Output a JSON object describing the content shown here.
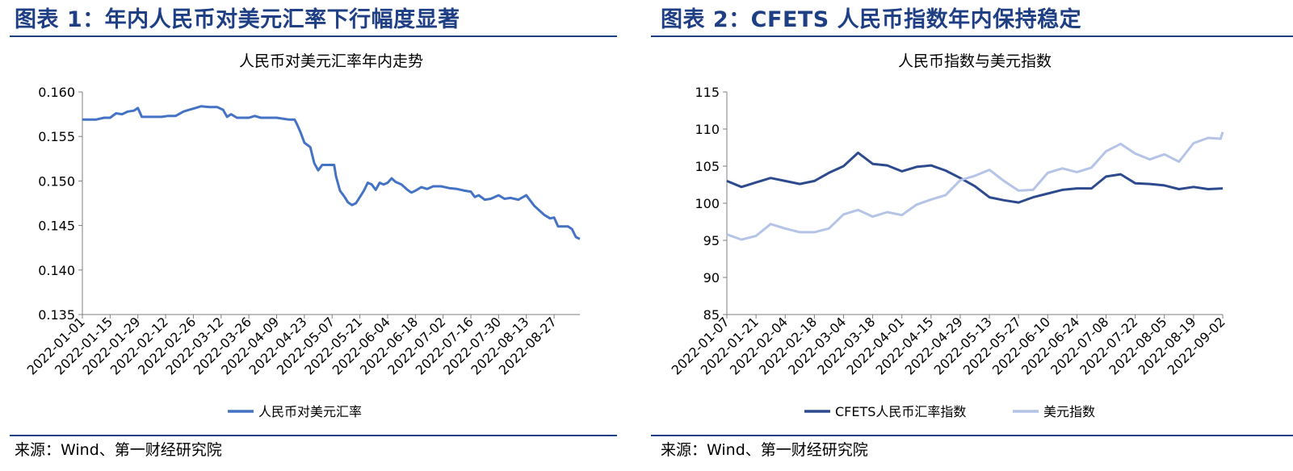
{
  "left": {
    "figure_title": "图表 1：年内人民币对美元汇率下行幅度显著",
    "source": "来源：Wind、第一财经研究院"
  },
  "right": {
    "figure_title": "图表 2：CFETS 人民币指数年内保持稳定",
    "source": "来源：Wind、第一财经研究院"
  },
  "colors": {
    "heading": "#1f3f85",
    "usdcny": "#4472c4",
    "cfets": "#2e4a8e",
    "dxy": "#b4c3e6"
  },
  "chart_data": [
    {
      "type": "line",
      "title": "人民币对美元汇率年内走势",
      "xlabel": "",
      "ylabel": "",
      "ylim": [
        0.135,
        0.16
      ],
      "yticks": [
        "0.135",
        "0.140",
        "0.145",
        "0.150",
        "0.155",
        "0.160"
      ],
      "xtick_labels": [
        "2022-01-01",
        "2022-01-15",
        "2022-01-29",
        "2022-02-12",
        "2022-02-26",
        "2022-03-12",
        "2022-03-26",
        "2022-04-09",
        "2022-04-23",
        "2022-05-07",
        "2022-05-21",
        "2022-06-04",
        "2022-06-18",
        "2022-07-02",
        "2022-07-16",
        "2022-07-30",
        "2022-08-13",
        "2022-08-27"
      ],
      "x_range": [
        "2022-01-01",
        "2022-09-09"
      ],
      "grid": false,
      "legend": "bottom",
      "series": [
        {
          "name": "人民币对美元汇率",
          "color": "#4472c4",
          "points": [
            [
              "2022-01-01",
              0.1569
            ],
            [
              "2022-01-05",
              0.1569
            ],
            [
              "2022-01-08",
              0.1569
            ],
            [
              "2022-01-12",
              0.1571
            ],
            [
              "2022-01-15",
              0.1571
            ],
            [
              "2022-01-18",
              0.1576
            ],
            [
              "2022-01-21",
              0.1575
            ],
            [
              "2022-01-24",
              0.1578
            ],
            [
              "2022-01-27",
              0.1579
            ],
            [
              "2022-01-29",
              0.1582
            ],
            [
              "2022-01-31",
              0.1572
            ],
            [
              "2022-02-03",
              0.1572
            ],
            [
              "2022-02-07",
              0.1572
            ],
            [
              "2022-02-10",
              0.1572
            ],
            [
              "2022-02-13",
              0.1573
            ],
            [
              "2022-02-17",
              0.1573
            ],
            [
              "2022-02-21",
              0.1578
            ],
            [
              "2022-02-24",
              0.158
            ],
            [
              "2022-02-27",
              0.1582
            ],
            [
              "2022-03-02",
              0.1584
            ],
            [
              "2022-03-06",
              0.1583
            ],
            [
              "2022-03-10",
              0.1583
            ],
            [
              "2022-03-13",
              0.158
            ],
            [
              "2022-03-15",
              0.1572
            ],
            [
              "2022-03-17",
              0.1575
            ],
            [
              "2022-03-20",
              0.1571
            ],
            [
              "2022-03-23",
              0.1571
            ],
            [
              "2022-03-26",
              0.1571
            ],
            [
              "2022-03-29",
              0.1573
            ],
            [
              "2022-04-01",
              0.1571
            ],
            [
              "2022-04-05",
              0.1571
            ],
            [
              "2022-04-09",
              0.1571
            ],
            [
              "2022-04-12",
              0.157
            ],
            [
              "2022-04-15",
              0.1569
            ],
            [
              "2022-04-18",
              0.1569
            ],
            [
              "2022-04-19",
              0.1565
            ],
            [
              "2022-04-21",
              0.1555
            ],
            [
              "2022-04-23",
              0.1543
            ],
            [
              "2022-04-26",
              0.1538
            ],
            [
              "2022-04-28",
              0.152
            ],
            [
              "2022-04-30",
              0.1512
            ],
            [
              "2022-05-02",
              0.1518
            ],
            [
              "2022-05-06",
              0.1518
            ],
            [
              "2022-05-08",
              0.1518
            ],
            [
              "2022-05-09",
              0.1505
            ],
            [
              "2022-05-11",
              0.1489
            ],
            [
              "2022-05-13",
              0.1483
            ],
            [
              "2022-05-15",
              0.1476
            ],
            [
              "2022-05-17",
              0.1473
            ],
            [
              "2022-05-19",
              0.1475
            ],
            [
              "2022-05-21",
              0.1482
            ],
            [
              "2022-05-23",
              0.1489
            ],
            [
              "2022-05-25",
              0.1498
            ],
            [
              "2022-05-27",
              0.1496
            ],
            [
              "2022-05-29",
              0.149
            ],
            [
              "2022-05-31",
              0.1498
            ],
            [
              "2022-06-02",
              0.1496
            ],
            [
              "2022-06-04",
              0.1498
            ],
            [
              "2022-06-06",
              0.1503
            ],
            [
              "2022-06-08",
              0.1499
            ],
            [
              "2022-06-11",
              0.1496
            ],
            [
              "2022-06-14",
              0.149
            ],
            [
              "2022-06-16",
              0.1487
            ],
            [
              "2022-06-18",
              0.1489
            ],
            [
              "2022-06-21",
              0.1493
            ],
            [
              "2022-06-24",
              0.1491
            ],
            [
              "2022-06-27",
              0.1494
            ],
            [
              "2022-07-01",
              0.1494
            ],
            [
              "2022-07-05",
              0.1492
            ],
            [
              "2022-07-09",
              0.1491
            ],
            [
              "2022-07-13",
              0.1489
            ],
            [
              "2022-07-16",
              0.1488
            ],
            [
              "2022-07-18",
              0.1482
            ],
            [
              "2022-07-20",
              0.1484
            ],
            [
              "2022-07-23",
              0.1479
            ],
            [
              "2022-07-26",
              0.148
            ],
            [
              "2022-07-30",
              0.1484
            ],
            [
              "2022-08-02",
              0.148
            ],
            [
              "2022-08-05",
              0.1481
            ],
            [
              "2022-08-09",
              0.1479
            ],
            [
              "2022-08-13",
              0.1484
            ],
            [
              "2022-08-15",
              0.1478
            ],
            [
              "2022-08-17",
              0.1472
            ],
            [
              "2022-08-19",
              0.1468
            ],
            [
              "2022-08-22",
              0.1462
            ],
            [
              "2022-08-25",
              0.1458
            ],
            [
              "2022-08-27",
              0.1459
            ],
            [
              "2022-08-29",
              0.1449
            ],
            [
              "2022-08-31",
              0.1449
            ],
            [
              "2022-09-03",
              0.1449
            ],
            [
              "2022-09-05",
              0.1446
            ],
            [
              "2022-09-07",
              0.1437
            ],
            [
              "2022-09-09",
              0.1435
            ]
          ]
        }
      ]
    },
    {
      "type": "line",
      "title": "人民币指数与美元指数",
      "xlabel": "",
      "ylabel": "",
      "ylim": [
        85,
        115
      ],
      "yticks": [
        "85",
        "90",
        "95",
        "100",
        "105",
        "110",
        "115"
      ],
      "xtick_labels": [
        "2022-01-07",
        "2022-01-21",
        "2022-02-04",
        "2022-02-18",
        "2022-03-04",
        "2022-03-18",
        "2022-04-01",
        "2022-04-15",
        "2022-04-29",
        "2022-05-13",
        "2022-05-27",
        "2022-06-10",
        "2022-06-24",
        "2022-07-08",
        "2022-07-22",
        "2022-08-05",
        "2022-08-19",
        "2022-09-02"
      ],
      "x_range": [
        "2022-01-07",
        "2022-09-02"
      ],
      "grid": false,
      "legend": "bottom",
      "series": [
        {
          "name": "CFETS人民币汇率指数",
          "color": "#2e4a8e",
          "points": [
            [
              "2022-01-07",
              103.0
            ],
            [
              "2022-01-14",
              102.2
            ],
            [
              "2022-01-21",
              102.8
            ],
            [
              "2022-01-28",
              103.4
            ],
            [
              "2022-02-04",
              103.0
            ],
            [
              "2022-02-11",
              102.6
            ],
            [
              "2022-02-18",
              103.0
            ],
            [
              "2022-02-25",
              104.1
            ],
            [
              "2022-03-04",
              105.0
            ],
            [
              "2022-03-11",
              106.8
            ],
            [
              "2022-03-18",
              105.3
            ],
            [
              "2022-03-25",
              105.1
            ],
            [
              "2022-04-01",
              104.3
            ],
            [
              "2022-04-08",
              104.9
            ],
            [
              "2022-04-15",
              105.1
            ],
            [
              "2022-04-22",
              104.4
            ],
            [
              "2022-04-29",
              103.4
            ],
            [
              "2022-05-06",
              102.3
            ],
            [
              "2022-05-13",
              100.8
            ],
            [
              "2022-05-20",
              100.4
            ],
            [
              "2022-05-27",
              100.1
            ],
            [
              "2022-06-03",
              100.8
            ],
            [
              "2022-06-10",
              101.3
            ],
            [
              "2022-06-17",
              101.8
            ],
            [
              "2022-06-24",
              102.0
            ],
            [
              "2022-07-01",
              102.0
            ],
            [
              "2022-07-08",
              103.6
            ],
            [
              "2022-07-15",
              103.9
            ],
            [
              "2022-07-22",
              102.7
            ],
            [
              "2022-07-29",
              102.6
            ],
            [
              "2022-08-05",
              102.4
            ],
            [
              "2022-08-12",
              101.9
            ],
            [
              "2022-08-19",
              102.2
            ],
            [
              "2022-08-26",
              101.9
            ],
            [
              "2022-09-02",
              102.0
            ]
          ]
        },
        {
          "name": "美元指数",
          "color": "#b4c3e6",
          "points": [
            [
              "2022-01-07",
              95.8
            ],
            [
              "2022-01-14",
              95.1
            ],
            [
              "2022-01-21",
              95.6
            ],
            [
              "2022-01-28",
              97.2
            ],
            [
              "2022-02-04",
              96.6
            ],
            [
              "2022-02-11",
              96.1
            ],
            [
              "2022-02-18",
              96.1
            ],
            [
              "2022-02-25",
              96.6
            ],
            [
              "2022-03-04",
              98.5
            ],
            [
              "2022-03-11",
              99.1
            ],
            [
              "2022-03-18",
              98.2
            ],
            [
              "2022-03-25",
              98.8
            ],
            [
              "2022-04-01",
              98.4
            ],
            [
              "2022-04-08",
              99.8
            ],
            [
              "2022-04-15",
              100.5
            ],
            [
              "2022-04-22",
              101.1
            ],
            [
              "2022-04-29",
              103.1
            ],
            [
              "2022-05-06",
              103.7
            ],
            [
              "2022-05-13",
              104.5
            ],
            [
              "2022-05-20",
              103.0
            ],
            [
              "2022-05-27",
              101.7
            ],
            [
              "2022-06-03",
              101.8
            ],
            [
              "2022-06-10",
              104.1
            ],
            [
              "2022-06-17",
              104.7
            ],
            [
              "2022-06-24",
              104.2
            ],
            [
              "2022-07-01",
              104.8
            ],
            [
              "2022-07-08",
              107.0
            ],
            [
              "2022-07-15",
              108.0
            ],
            [
              "2022-07-22",
              106.7
            ],
            [
              "2022-07-29",
              105.9
            ],
            [
              "2022-08-05",
              106.6
            ],
            [
              "2022-08-12",
              105.6
            ],
            [
              "2022-08-19",
              108.1
            ],
            [
              "2022-08-26",
              108.8
            ],
            [
              "2022-09-01",
              108.7
            ],
            [
              "2022-09-02",
              109.6
            ]
          ]
        }
      ]
    }
  ]
}
